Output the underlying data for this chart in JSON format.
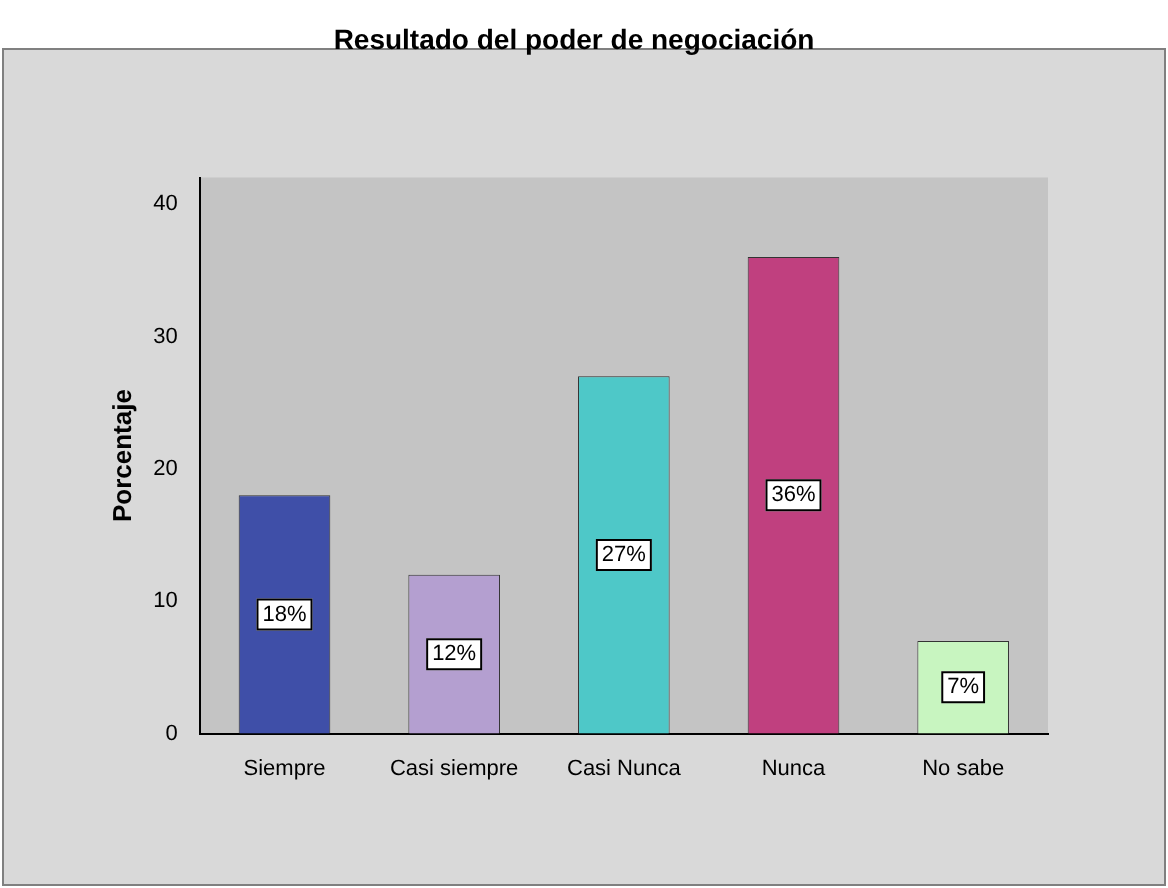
{
  "chart_data": {
    "type": "bar",
    "title": "Resultado del poder de negociación",
    "ylabel": "Porcentaje",
    "categories": [
      "Siempre",
      "Casi siempre",
      "Casi Nunca",
      "Nunca",
      "No sabe"
    ],
    "values": [
      18,
      12,
      27,
      36,
      7
    ],
    "value_labels": [
      "18%",
      "12%",
      "27%",
      "36%",
      "7%"
    ],
    "colors": [
      "#3f4fa8",
      "#b49fd0",
      "#4ec8c8",
      "#c0407f",
      "#c8f5c0"
    ],
    "ylim": [
      0,
      42
    ],
    "yticks": [
      0,
      10,
      20,
      30,
      40
    ],
    "grid": false,
    "legend": false
  }
}
